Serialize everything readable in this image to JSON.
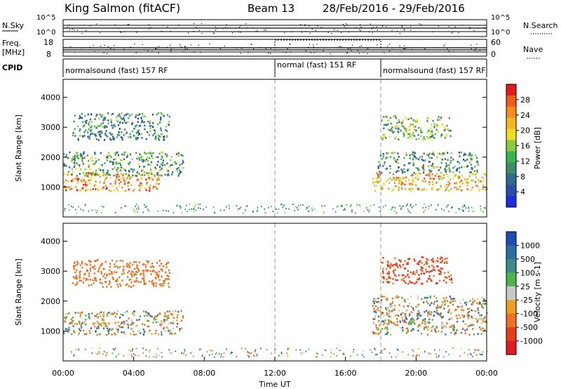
{
  "header": {
    "station": "King Salmon (fitACF)",
    "beam": "Beam 13",
    "date_range": "28/Feb/2016 - 29/Feb/2016"
  },
  "status_rows": {
    "nsky_label": "N.Sky",
    "nsky_ticks": [
      "10^5",
      "10^0"
    ],
    "nsearch_label": "N.Search",
    "nsearch_ticks": [
      "10^5",
      "10^0"
    ],
    "freq_label_1": "Freq.",
    "freq_label_2": "[MHz]",
    "freq_ticks": [
      "18",
      "8"
    ],
    "nave_label": "Nave",
    "nave_ticks": [
      "60",
      "0"
    ],
    "cpid_label": "CPID",
    "cpid_segments": [
      {
        "label": "normalsound (fast) 157 RF",
        "start_h": 0,
        "end_h": 12
      },
      {
        "label": "normal (fast) 151 RF",
        "start_h": 12,
        "end_h": 18
      },
      {
        "label": "normalsound (fast) 157 RF",
        "start_h": 18,
        "end_h": 24
      }
    ]
  },
  "colorbars": {
    "power": {
      "label": "Power [dB]",
      "ticks": [
        "28",
        "24",
        "20",
        "16",
        "12",
        "8",
        "4"
      ],
      "colors": [
        "#e41a1c",
        "#f25c14",
        "#fa8c1c",
        "#f4b81c",
        "#f2dc1e",
        "#8ccc3c",
        "#3cb44c",
        "#3c8c6c",
        "#2c6c8c",
        "#2c4cac",
        "#1c2ce4"
      ]
    },
    "velocity": {
      "label": "Velocity [m s-1]",
      "ticks": [
        "1000",
        "500",
        "100",
        "25",
        "-25",
        "-100",
        "-500",
        "-1000"
      ],
      "colors": [
        "#1c4cb4",
        "#2c6ca4",
        "#3c8c8c",
        "#4cb44c",
        "#c8c8c8",
        "#f0a020",
        "#f07020",
        "#e83c1c",
        "#e41a1c"
      ]
    }
  },
  "chart_data": [
    {
      "type": "heatmap",
      "title": "",
      "xlabel": "Time UT",
      "ylabel": "Slant Range [km]",
      "xlim": [
        0,
        24
      ],
      "ylim": [
        0,
        4600
      ],
      "x_ticks": [
        "00:00",
        "04:00",
        "08:00",
        "12:00",
        "16:00",
        "20:00",
        "00:00"
      ],
      "y_ticks": [
        1000,
        2000,
        3000,
        4000
      ],
      "quantity": "Power [dB]",
      "regions": [
        {
          "t0": 0,
          "t1": 5.5,
          "r0": 900,
          "r1": 1500,
          "value": 22
        },
        {
          "t0": 0,
          "t1": 6.8,
          "r0": 1400,
          "r1": 2200,
          "value": 10
        },
        {
          "t0": 0.5,
          "t1": 6.0,
          "r0": 2600,
          "r1": 3500,
          "value": 8
        },
        {
          "t0": 17.5,
          "t1": 24,
          "r0": 900,
          "r1": 1500,
          "value": 20
        },
        {
          "t0": 17.8,
          "t1": 23.5,
          "r0": 1500,
          "r1": 2200,
          "value": 9
        },
        {
          "t0": 18.0,
          "t1": 22.0,
          "r0": 2600,
          "r1": 3400,
          "value": 12
        }
      ]
    },
    {
      "type": "heatmap",
      "title": "",
      "xlabel": "Time UT",
      "ylabel": "Slant Range [km]",
      "xlim": [
        0,
        24
      ],
      "ylim": [
        0,
        4600
      ],
      "x_ticks": [
        "00:00",
        "04:00",
        "08:00",
        "12:00",
        "16:00",
        "20:00",
        "00:00"
      ],
      "y_ticks": [
        1000,
        2000,
        3000,
        4000
      ],
      "quantity": "Velocity [m s-1]",
      "regions": [
        {
          "t0": 0,
          "t1": 6.8,
          "r0": 900,
          "r1": 1700,
          "value": 0
        },
        {
          "t0": 0.5,
          "t1": 6.0,
          "r0": 2500,
          "r1": 3400,
          "value": -300
        },
        {
          "t0": 17.5,
          "t1": 24,
          "r0": 900,
          "r1": 2200,
          "value": 0
        },
        {
          "t0": 18.0,
          "t1": 22.0,
          "r0": 2600,
          "r1": 3500,
          "value": -600
        }
      ]
    }
  ]
}
